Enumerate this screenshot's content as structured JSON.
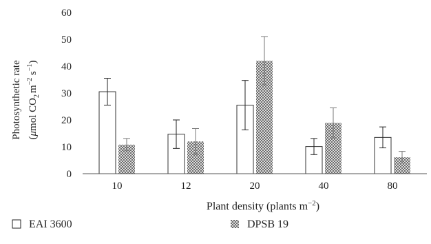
{
  "chart_data": {
    "type": "bar",
    "categories": [
      "10",
      "12",
      "20",
      "40",
      "80"
    ],
    "series": [
      {
        "name": "EAI 3600",
        "pattern": "open",
        "values": [
          30.5,
          14.7,
          25.5,
          10.1,
          13.5
        ],
        "errors": [
          5.0,
          5.3,
          9.2,
          3.0,
          3.9
        ]
      },
      {
        "name": "DPSB 19",
        "pattern": "crosshatch",
        "values": [
          10.8,
          12.0,
          42.0,
          18.9,
          6.1
        ],
        "errors": [
          2.3,
          4.8,
          9.0,
          5.6,
          2.2
        ]
      }
    ],
    "ylim": [
      0,
      60
    ],
    "yticks": [
      "0",
      "10",
      "20",
      "30",
      "40",
      "50",
      "60"
    ],
    "ylabel_line1": "Photosynthetic rate",
    "ylabel_line2_prefix": "(",
    "ylabel_mu": "μ",
    "ylabel_mol_co": "mol CO",
    "ylabel_sub2": "2",
    "ylabel_m": "m",
    "ylabel_exp_m": "−2",
    "ylabel_s": " s",
    "ylabel_exp_s": "−1",
    "ylabel_close": ")",
    "xlabel_text": "Plant density (plants m",
    "xlabel_exp": "−2",
    "xlabel_close": ")",
    "legend_placement": "bottom",
    "colors": {
      "axis": "#555555",
      "bar_stroke": "#333333",
      "bar_fill_open": "#ffffff",
      "hatch": "#555555"
    }
  }
}
